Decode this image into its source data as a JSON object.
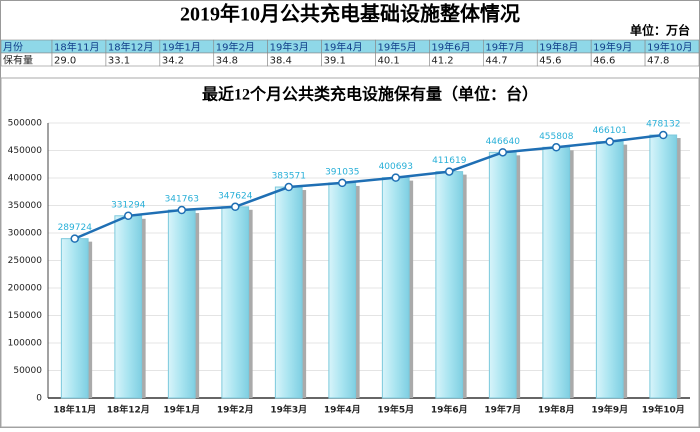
{
  "header": {
    "title": "2019年10月公共充电基础设施整体情况",
    "unit": "单位：万台"
  },
  "table": {
    "rows": [
      [
        "月份",
        "18年11月",
        "18年12月",
        "19年1月",
        "19年2月",
        "19年3月",
        "19年4月",
        "19年5月",
        "19年6月",
        "19年7月",
        "19年8月",
        "19年9月",
        "19年10月"
      ],
      [
        "保有量",
        "29.0",
        "33.1",
        "34.2",
        "34.8",
        "38.4",
        "39.1",
        "40.1",
        "41.2",
        "44.7",
        "45.6",
        "46.6",
        "47.8"
      ]
    ]
  },
  "chart_data": {
    "type": "bar",
    "title": "最近12个月公共类充电设施保有量（单位：台）",
    "categories": [
      "18年11月",
      "18年12月",
      "19年1月",
      "19年2月",
      "19年3月",
      "19年4月",
      "19年5月",
      "19年6月",
      "19年7月",
      "19年8月",
      "19年9月",
      "19年10月"
    ],
    "values": [
      289724,
      331294,
      341763,
      347624,
      383571,
      391035,
      400693,
      411619,
      446640,
      455808,
      466101,
      478132
    ],
    "color": "#a8e4f0",
    "line_color": "#1f6fb4",
    "label_color": "#2ab0d8",
    "ylim": [
      0,
      500000
    ],
    "yticks": [
      0,
      50000,
      100000,
      150000,
      200000,
      250000,
      300000,
      350000,
      400000,
      450000,
      500000
    ],
    "grid": true
  }
}
